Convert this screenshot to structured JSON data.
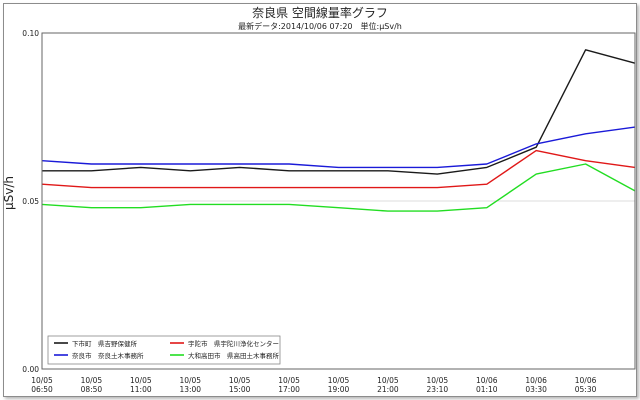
{
  "title": "奈良県 空間線量率グラフ",
  "subtitle": "最新データ:2014/10/06 07:20　単位:μSv/h",
  "colors": {
    "black": "#1a1a1a",
    "red": "#e01818",
    "blue": "#1a1ad8",
    "green": "#22dd22",
    "grid": "#dddddd",
    "axis": "#666666"
  },
  "chart_data": {
    "type": "line",
    "ylabel": "μSv/h",
    "ylim": [
      0.0,
      0.1
    ],
    "yticks": [
      "0.00",
      "0.05",
      "0.10"
    ],
    "x": [
      "10/05 06:50",
      "10/05 08:50",
      "10/05 11:00",
      "10/05 13:00",
      "10/05 15:00",
      "10/05 17:00",
      "10/05 19:00",
      "10/05 21:00",
      "10/05 23:10",
      "10/06 01:10",
      "10/06 03:30",
      "10/06 05:30",
      "10/06 07:20"
    ],
    "xticks": [
      {
        "date": "10/05",
        "time": "06:50"
      },
      {
        "date": "10/05",
        "time": "08:50"
      },
      {
        "date": "10/05",
        "time": "11:00"
      },
      {
        "date": "10/05",
        "time": "13:00"
      },
      {
        "date": "10/05",
        "time": "15:00"
      },
      {
        "date": "10/05",
        "time": "17:00"
      },
      {
        "date": "10/05",
        "time": "19:00"
      },
      {
        "date": "10/05",
        "time": "21:00"
      },
      {
        "date": "10/05",
        "time": "23:10"
      },
      {
        "date": "10/06",
        "time": "01:10"
      },
      {
        "date": "10/06",
        "time": "03:30"
      },
      {
        "date": "10/06",
        "time": "05:30"
      }
    ],
    "grid": true,
    "legend_position": "bottom-left",
    "series": [
      {
        "name": "下市町　県吉野保健所",
        "color": "#1a1a1a",
        "values": [
          0.059,
          0.059,
          0.06,
          0.059,
          0.06,
          0.059,
          0.059,
          0.059,
          0.058,
          0.06,
          0.066,
          0.095,
          0.091
        ]
      },
      {
        "name": "奈良市　奈良土木事務所",
        "color": "#1a1ad8",
        "values": [
          0.062,
          0.061,
          0.061,
          0.061,
          0.061,
          0.061,
          0.06,
          0.06,
          0.06,
          0.061,
          0.067,
          0.07,
          0.072
        ]
      },
      {
        "name": "宇陀市　県宇陀川浄化センター",
        "color": "#e01818",
        "values": [
          0.055,
          0.054,
          0.054,
          0.054,
          0.054,
          0.054,
          0.054,
          0.054,
          0.054,
          0.055,
          0.065,
          0.062,
          0.06
        ]
      },
      {
        "name": "大和高田市　県高田土木事務所",
        "color": "#22dd22",
        "values": [
          0.049,
          0.048,
          0.048,
          0.049,
          0.049,
          0.049,
          0.048,
          0.047,
          0.047,
          0.048,
          0.058,
          0.061,
          0.053
        ]
      }
    ]
  }
}
